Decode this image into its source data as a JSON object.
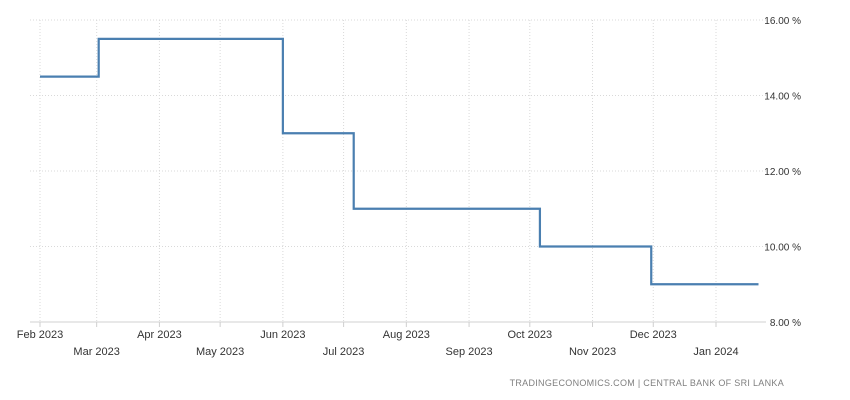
{
  "chart_data": {
    "type": "line",
    "step": true,
    "x_months": [
      "Feb 2023",
      "Mar 2023",
      "Apr 2023",
      "May 2023",
      "Jun 2023",
      "Jul 2023",
      "Aug 2023",
      "Sep 2023",
      "Oct 2023",
      "Nov 2023",
      "Dec 2023",
      "Jan 2024"
    ],
    "yticks": [
      "8.00 %",
      "10.00 %",
      "12.00 %",
      "14.00 %",
      "16.00 %"
    ],
    "ylim": [
      8,
      16
    ],
    "y_axis_side": "right",
    "grid": true,
    "series": [
      {
        "color": "#4a7fb0",
        "points": [
          {
            "x": "2023-02-01",
            "y": 14.5
          },
          {
            "x": "2023-03-02",
            "y": 15.5
          },
          {
            "x": "2023-06-01",
            "y": 13.0
          },
          {
            "x": "2023-07-06",
            "y": 11.0
          },
          {
            "x": "2023-10-06",
            "y": 10.0
          },
          {
            "x": "2023-11-30",
            "y": 9.0
          },
          {
            "x": "2024-01-22",
            "y": 9.0
          }
        ]
      }
    ]
  },
  "source": "TRADINGECONOMICS.COM  |  CENTRAL BANK OF SRI LANKA"
}
